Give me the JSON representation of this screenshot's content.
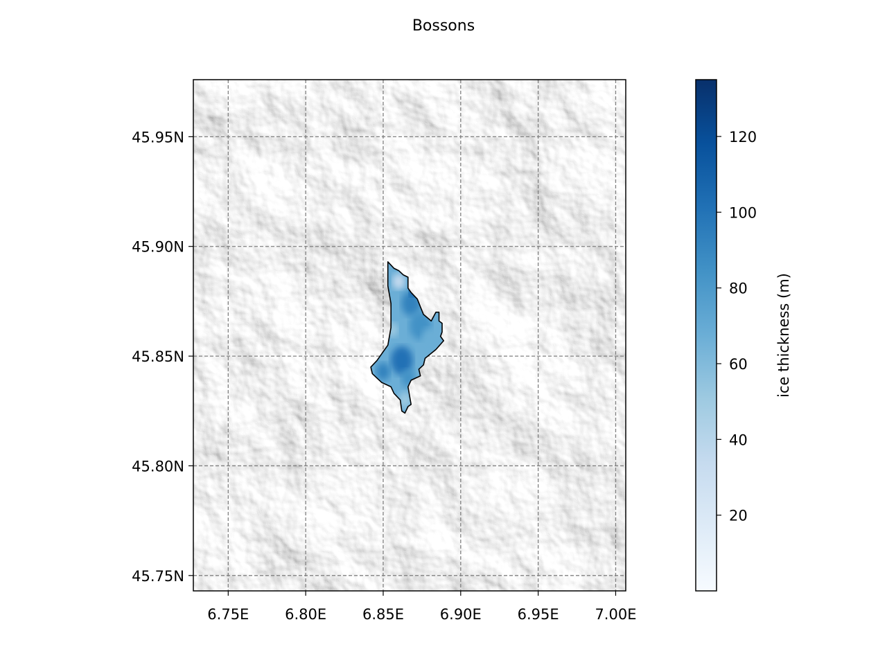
{
  "title": "Bossons",
  "map": {
    "x_ticks": [
      "6.75E",
      "6.80E",
      "6.85E",
      "6.90E",
      "6.95E",
      "7.00E"
    ],
    "y_ticks": [
      "45.95N",
      "45.90N",
      "45.85N",
      "45.80N",
      "45.75N"
    ],
    "x_tick_values": [
      6.75,
      6.8,
      6.85,
      6.9,
      6.95,
      7.0
    ],
    "y_tick_values": [
      45.95,
      45.9,
      45.85,
      45.8,
      45.75
    ],
    "lon_range": [
      6.7275,
      7.0065
    ],
    "lat_range": [
      45.743,
      45.976
    ],
    "grid": true,
    "basemap": "grayscale hillshade"
  },
  "colorbar": {
    "label": "ice thickness (m)",
    "ticks": [
      "20",
      "40",
      "60",
      "80",
      "100",
      "120"
    ],
    "tick_values": [
      20,
      40,
      60,
      80,
      100,
      120
    ],
    "range": [
      0,
      135
    ],
    "colormap": "Blues",
    "color_low": "#f7fbff",
    "color_high": "#08306b"
  },
  "glacier": {
    "name": "Bossons",
    "outline_color": "#000000",
    "fill_colors": [
      "#c6dbef",
      "#6baed6",
      "#3182bd",
      "#08519c"
    ],
    "outline_lonlat": [
      [
        6.853,
        45.893
      ],
      [
        6.857,
        45.89
      ],
      [
        6.86,
        45.889
      ],
      [
        6.863,
        45.887
      ],
      [
        6.866,
        45.886
      ],
      [
        6.866,
        45.881
      ],
      [
        6.868,
        45.879
      ],
      [
        6.872,
        45.876
      ],
      [
        6.876,
        45.869
      ],
      [
        6.881,
        45.866
      ],
      [
        6.884,
        45.87
      ],
      [
        6.886,
        45.87
      ],
      [
        6.886,
        45.866
      ],
      [
        6.888,
        45.865
      ],
      [
        6.888,
        45.861
      ],
      [
        6.887,
        45.859
      ],
      [
        6.889,
        45.857
      ],
      [
        6.884,
        45.853
      ],
      [
        6.877,
        45.849
      ],
      [
        6.876,
        45.846
      ],
      [
        6.873,
        45.844
      ],
      [
        6.874,
        45.841
      ],
      [
        6.868,
        45.839
      ],
      [
        6.866,
        45.836
      ],
      [
        6.867,
        45.832
      ],
      [
        6.868,
        45.828
      ],
      [
        6.866,
        45.827
      ],
      [
        6.864,
        45.824
      ],
      [
        6.862,
        45.825
      ],
      [
        6.861,
        45.83
      ],
      [
        6.857,
        45.833
      ],
      [
        6.855,
        45.836
      ],
      [
        6.849,
        45.838
      ],
      [
        6.846,
        45.84
      ],
      [
        6.843,
        45.842
      ],
      [
        6.842,
        45.845
      ],
      [
        6.846,
        45.848
      ],
      [
        6.849,
        45.851
      ],
      [
        6.853,
        45.855
      ],
      [
        6.855,
        45.863
      ],
      [
        6.855,
        45.874
      ],
      [
        6.853,
        45.882
      ],
      [
        6.853,
        45.888
      ],
      [
        6.853,
        45.893
      ]
    ]
  }
}
